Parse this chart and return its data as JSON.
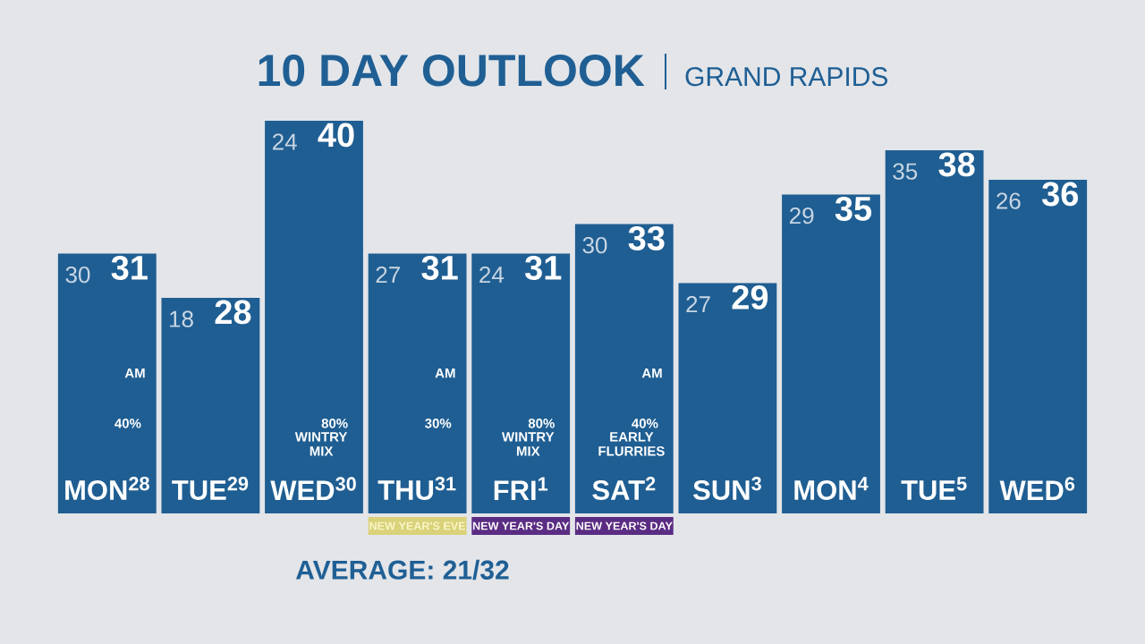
{
  "chart_data": {
    "type": "bar",
    "title": "10 DAY OUTLOOK",
    "subtitle": "GRAND RAPIDS",
    "categories": [
      "MON$^{28}$",
      "TUE$^{29}$",
      "WED$^{30}$",
      "THU$^{31}$",
      "FRI$^{1}$",
      "SAT$^{2}$",
      "SUN$^{3}$",
      "MON$^{4}$",
      "TUE$^{5}$",
      "WED$^{6}$"
    ],
    "series": [
      {
        "color": "#1f5e92",
        "values": [
          31,
          28,
          40,
          31,
          31,
          33,
          29,
          35,
          38,
          36
        ]
      }
    ],
    "ylim": [
      13.4,
      40
    ],
    "tick_labels": "x",
    "data_labels": true,
    "grid": false,
    "annotations": [
      {
        "text": "30",
        "x": "MON$^{28}$",
        "y": 31
      },
      {
        "text": "18",
        "x": "TUE$^{29}$",
        "y": 28
      },
      {
        "text": "24",
        "x": "WED$^{30}$",
        "y": 40
      },
      {
        "text": "27",
        "x": "THU$^{31}$",
        "y": 31
      },
      {
        "text": "24",
        "x": "FRI$^{1}$",
        "y": 31
      },
      {
        "text": "30",
        "x": "SAT$^{2}$",
        "y": 33
      },
      {
        "text": "27",
        "x": "SUN$^{3}$",
        "y": 29
      },
      {
        "text": "29",
        "x": "MON$^{4}$",
        "y": 35
      },
      {
        "text": "35",
        "x": "TUE$^{5}$",
        "y": 38
      },
      {
        "text": "26",
        "x": "WED$^{6}$",
        "y": 36
      },
      "AM",
      "40%",
      "80%",
      "WINTRY MIX",
      "AM",
      "30%",
      "80%",
      "WINTRY MIX",
      "AM",
      "40%",
      "EARLY FLURRIES",
      "NEW YEAR'S EVE",
      "NEW YEAR'S DAY",
      "NEW YEAR'S DAY",
      "AVERAGE:  21/32"
    ]
  }
}
